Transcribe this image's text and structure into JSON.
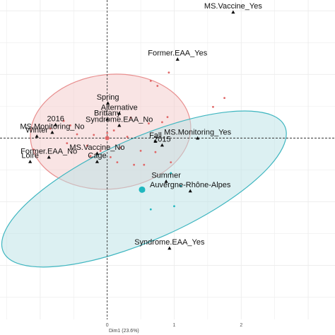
{
  "chart_data": {
    "type": "scatter",
    "title": "",
    "xlabel": "Dim1 (23.6%)",
    "ylabel": "",
    "xlim": [
      -1.6,
      3.4
    ],
    "ylim": [
      -2.85,
      2.17
    ],
    "x_ticks": [
      0,
      1,
      2
    ],
    "x_tick_labels": [
      "0",
      "1",
      "2"
    ],
    "grid": true,
    "legend": "none",
    "colors": {
      "group1": "#e06666",
      "group2": "#1fb7bf",
      "ellipse1_fill": "#f3c9c9",
      "ellipse1_stroke": "#e88e8e",
      "ellipse2_fill": "#b9e2e6",
      "ellipse2_stroke": "#3fb6c0",
      "grid": "#ececec",
      "zero_line": "#333333",
      "variable": "#111111"
    },
    "variables": [
      {
        "label": "MS.Vaccine_Yes",
        "x": 1.88,
        "y": 1.98
      },
      {
        "label": "Former.EAA_Yes",
        "x": 1.05,
        "y": 1.24
      },
      {
        "label": "Spring",
        "x": 0.01,
        "y": 0.55
      },
      {
        "label": "Brittany",
        "x": 0.0,
        "y": 0.3
      },
      {
        "label": "Alternative",
        "x": 0.18,
        "y": 0.39
      },
      {
        "label": "Syndrome.EAA_No",
        "x": 0.18,
        "y": 0.2
      },
      {
        "label": "2016",
        "x": -0.77,
        "y": 0.21
      },
      {
        "label": "MS.Monitoring_No",
        "x": -0.82,
        "y": 0.09
      },
      {
        "label": "Winter",
        "x": -1.05,
        "y": 0.03
      },
      {
        "label": "MS.Monitoring_Yes",
        "x": 1.35,
        "y": 0.0
      },
      {
        "label": "Fall",
        "x": 0.72,
        "y": -0.05
      },
      {
        "label": "2015",
        "x": 0.82,
        "y": -0.11
      },
      {
        "label": "Former.EAA_No",
        "x": -0.87,
        "y": -0.3
      },
      {
        "label": "MS.Vaccine_No",
        "x": -0.15,
        "y": -0.24
      },
      {
        "label": "Loire",
        "x": -1.15,
        "y": -0.37
      },
      {
        "label": "Cage",
        "x": -0.15,
        "y": -0.37
      },
      {
        "label": "Summer",
        "x": 0.88,
        "y": -0.68
      },
      {
        "label": "Auvergne-Rhône-Alpes",
        "x": 1.24,
        "y": -0.83
      },
      {
        "label": "Syndrome.EAA_Yes",
        "x": 0.93,
        "y": -1.73
      }
    ],
    "individuals": {
      "group1": [
        {
          "x": -0.85,
          "y": 0.15
        },
        {
          "x": -0.6,
          "y": -0.08
        },
        {
          "x": -0.55,
          "y": 0.2
        },
        {
          "x": -0.45,
          "y": 0.06
        },
        {
          "x": -0.3,
          "y": -0.12
        },
        {
          "x": -0.2,
          "y": 0.05
        },
        {
          "x": -0.1,
          "y": -0.2
        },
        {
          "x": 0.0,
          "y": 0.08
        },
        {
          "x": 0.05,
          "y": -0.3
        },
        {
          "x": 0.1,
          "y": 0.12
        },
        {
          "x": 0.2,
          "y": -0.15
        },
        {
          "x": 0.3,
          "y": 0.02
        },
        {
          "x": 0.4,
          "y": -0.42
        },
        {
          "x": 0.5,
          "y": -0.2
        },
        {
          "x": 0.62,
          "y": 0.23
        },
        {
          "x": 0.72,
          "y": -0.22
        },
        {
          "x": 0.82,
          "y": 0.25
        },
        {
          "x": 0.9,
          "y": 0.33
        },
        {
          "x": 0.75,
          "y": 0.82
        },
        {
          "x": 0.65,
          "y": 0.9
        },
        {
          "x": 0.92,
          "y": 1.03
        },
        {
          "x": 1.58,
          "y": 0.49
        },
        {
          "x": 1.75,
          "y": 0.63
        },
        {
          "x": -1.1,
          "y": -0.18
        },
        {
          "x": -0.25,
          "y": -0.28
        },
        {
          "x": 0.15,
          "y": -0.38
        },
        {
          "x": 0.55,
          "y": -0.42
        },
        {
          "x": 0.95,
          "y": -0.38
        },
        {
          "x": -0.65,
          "y": 0.27
        },
        {
          "x": 0.35,
          "y": 0.32
        }
      ],
      "group2": [
        {
          "x": 0.55,
          "y": -0.83
        },
        {
          "x": 0.65,
          "y": -1.12
        },
        {
          "x": 1.0,
          "y": -1.07
        },
        {
          "x": 0.95,
          "y": -0.55
        },
        {
          "x": 1.1,
          "y": -0.75
        }
      ]
    },
    "centroids": [
      {
        "group": "group1",
        "x": 0.0,
        "y": 0.0,
        "size": 3
      },
      {
        "group": "group2",
        "x": 0.52,
        "y": -0.81,
        "size": 4.5
      }
    ],
    "ellipses": [
      {
        "group": "group1",
        "cx": 0.05,
        "cy": 0.1,
        "rx": 1.2,
        "ry": 0.9,
        "angle_deg": -6
      },
      {
        "group": "group2",
        "cx": 0.55,
        "cy": -0.8,
        "rx": 2.3,
        "ry": 0.8,
        "angle_deg": -24
      }
    ]
  }
}
